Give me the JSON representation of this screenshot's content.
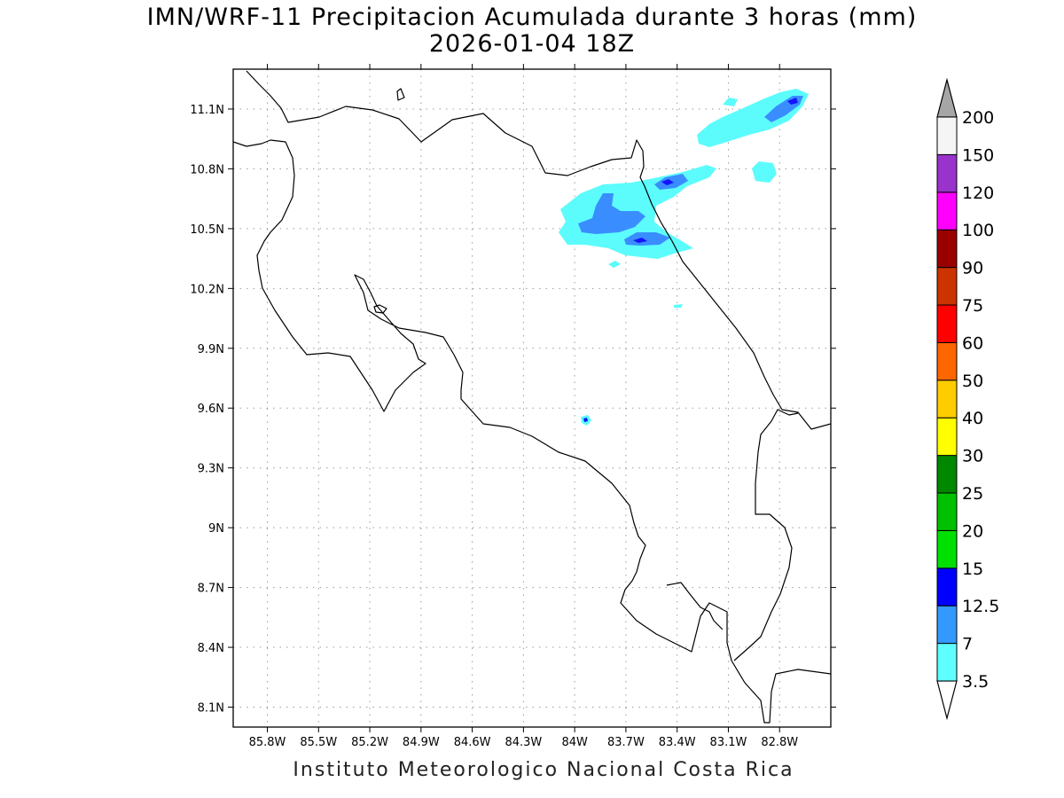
{
  "title": {
    "line1": "IMN/WRF-11 Precipitacion Acumulada durante 3 horas (mm)",
    "line2": "2026-01-04 18Z"
  },
  "footer": "Instituto Meteorologico Nacional Costa Rica",
  "map": {
    "lon_range": [
      -86.0,
      -82.5
    ],
    "lat_range": [
      8.0,
      11.3
    ],
    "grid": true,
    "lon_ticks": [
      {
        "value": -85.8,
        "label": "85.8W"
      },
      {
        "value": -85.5,
        "label": "85.5W"
      },
      {
        "value": -85.2,
        "label": "85.2W"
      },
      {
        "value": -84.9,
        "label": "84.9W"
      },
      {
        "value": -84.6,
        "label": "84.6W"
      },
      {
        "value": -84.3,
        "label": "84.3W"
      },
      {
        "value": -84.0,
        "label": "84W"
      },
      {
        "value": -83.7,
        "label": "83.7W"
      },
      {
        "value": -83.4,
        "label": "83.4W"
      },
      {
        "value": -83.1,
        "label": "83.1W"
      },
      {
        "value": -82.8,
        "label": "82.8W"
      }
    ],
    "lat_ticks": [
      {
        "value": 11.1,
        "label": "11.1N"
      },
      {
        "value": 10.8,
        "label": "10.8N"
      },
      {
        "value": 10.5,
        "label": "10.5N"
      },
      {
        "value": 10.2,
        "label": "10.2N"
      },
      {
        "value": 9.9,
        "label": "9.9N"
      },
      {
        "value": 9.6,
        "label": "9.6N"
      },
      {
        "value": 9.3,
        "label": "9.3N"
      },
      {
        "value": 9.0,
        "label": "9N"
      },
      {
        "value": 8.7,
        "label": "8.7N"
      },
      {
        "value": 8.4,
        "label": "8.4N"
      },
      {
        "value": 8.1,
        "label": "8.1N"
      }
    ]
  },
  "legend": {
    "labels": [
      "3.5",
      "7",
      "12.5",
      "15",
      "20",
      "25",
      "30",
      "40",
      "50",
      "60",
      "75",
      "90",
      "100",
      "120",
      "150",
      "200"
    ],
    "colors": [
      "#60ffff",
      "#3399ff",
      "#0000ff",
      "#00e000",
      "#00c000",
      "#008800",
      "#ffff00",
      "#ffcc00",
      "#ff6600",
      "#ff0000",
      "#cc3300",
      "#990000",
      "#ff00ff",
      "#9933cc",
      "#f5f5f5"
    ],
    "over_color": "#a6a6a6",
    "under_color": "#ffffff"
  }
}
